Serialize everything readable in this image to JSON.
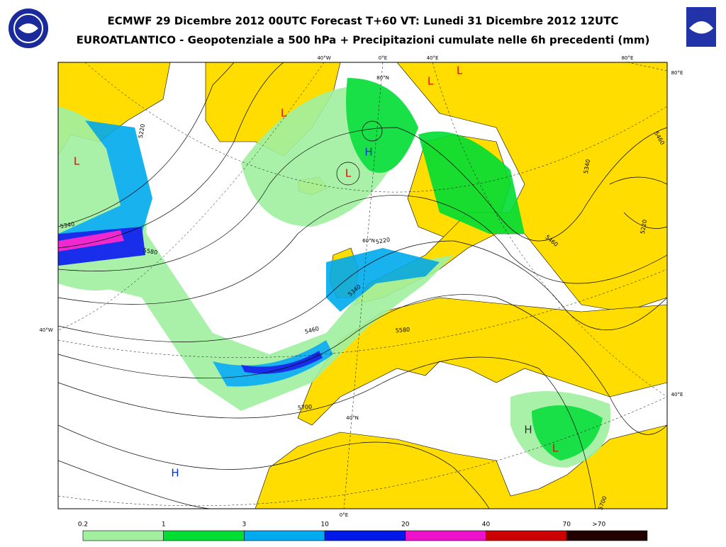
{
  "header": {
    "title": "ECMWF 29 Dicembre 2012 00UTC Forecast T+60 VT: Lunedi 31 Dicembre 2012 12UTC",
    "subtitle": "EUROATLANTICO - Geopotenziale a 500 hPa + Precipitazioni cumulate nelle 6h precedenti (mm)"
  },
  "map": {
    "graticule_labels": [
      "40°W",
      "0°E",
      "40°E",
      "80°E",
      "80°E",
      "40°W",
      "40°E",
      "0°E",
      "80°N",
      "60°N",
      "40°N"
    ],
    "contour_labels": [
      "5220",
      "5340",
      "5580",
      "5220",
      "5340",
      "5460",
      "5580",
      "5700",
      "5340",
      "5460",
      "5460",
      "5220",
      "5700"
    ],
    "pressure_centers": [
      "L",
      "L",
      "L",
      "L",
      "L",
      "L",
      "H",
      "H",
      "H"
    ]
  },
  "legend": {
    "labels": [
      "0.2",
      "1",
      "3",
      "10",
      "20",
      "40",
      "70",
      ">70"
    ]
  }
}
